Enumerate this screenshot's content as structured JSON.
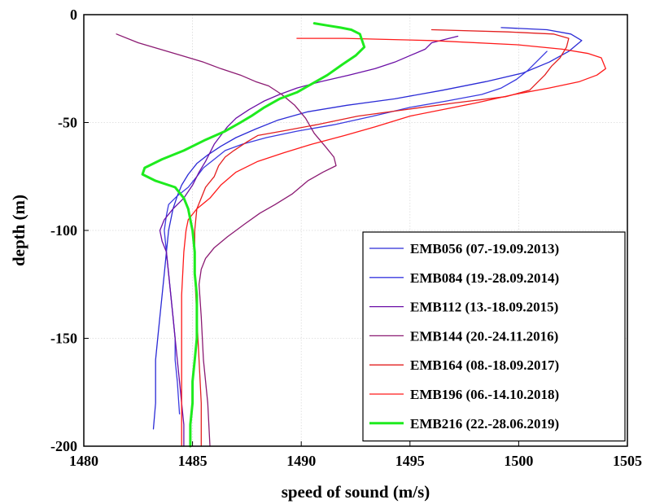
{
  "chart_data": {
    "type": "line",
    "title": "",
    "xlabel": "speed of sound (m/s)",
    "ylabel": "depth (m)",
    "xlim": [
      1480,
      1505
    ],
    "ylim": [
      -200,
      0
    ],
    "xticks": [
      1480,
      1485,
      1490,
      1495,
      1500,
      1505
    ],
    "yticks": [
      0,
      -50,
      -100,
      -150,
      -200
    ],
    "grid": true,
    "legend_position": "lower-right",
    "series": [
      {
        "name": "EMB056 (07.-19.09.2013)",
        "color": "#2b2bd6",
        "width": 1.3,
        "points": [
          [
            1499.2,
            -6
          ],
          [
            1501.3,
            -7
          ],
          [
            1502.4,
            -9
          ],
          [
            1502.9,
            -12
          ],
          [
            1502.3,
            -17
          ],
          [
            1501.4,
            -22
          ],
          [
            1500.2,
            -27
          ],
          [
            1498.5,
            -31
          ],
          [
            1496.5,
            -35
          ],
          [
            1494.3,
            -39
          ],
          [
            1492.1,
            -42
          ],
          [
            1490.3,
            -45
          ],
          [
            1488.9,
            -49
          ],
          [
            1487.9,
            -53
          ],
          [
            1487.0,
            -57
          ],
          [
            1486.3,
            -61
          ],
          [
            1485.7,
            -65
          ],
          [
            1485.2,
            -69
          ],
          [
            1484.8,
            -74
          ],
          [
            1484.5,
            -79
          ],
          [
            1484.3,
            -84
          ],
          [
            1484.1,
            -90
          ],
          [
            1483.9,
            -100
          ],
          [
            1483.8,
            -110
          ],
          [
            1483.7,
            -120
          ],
          [
            1483.6,
            -130
          ],
          [
            1483.5,
            -140
          ],
          [
            1483.4,
            -150
          ],
          [
            1483.3,
            -160
          ],
          [
            1483.3,
            -170
          ],
          [
            1483.3,
            -180
          ],
          [
            1483.2,
            -192
          ]
        ]
      },
      {
        "name": "EMB084 (19.-28.09.2014)",
        "color": "#3a3ae0",
        "width": 1.3,
        "points": [
          [
            1501.3,
            -17
          ],
          [
            1500.8,
            -22
          ],
          [
            1500.4,
            -26
          ],
          [
            1499.9,
            -30
          ],
          [
            1499.2,
            -34
          ],
          [
            1498.3,
            -37
          ],
          [
            1496.7,
            -40
          ],
          [
            1495.0,
            -43
          ],
          [
            1493.3,
            -47
          ],
          [
            1491.5,
            -51
          ],
          [
            1489.8,
            -54
          ],
          [
            1488.4,
            -57
          ],
          [
            1487.3,
            -60
          ],
          [
            1486.5,
            -63
          ],
          [
            1486.0,
            -67
          ],
          [
            1485.5,
            -71
          ],
          [
            1485.2,
            -75
          ],
          [
            1484.8,
            -80
          ],
          [
            1484.3,
            -84
          ],
          [
            1483.9,
            -88
          ],
          [
            1483.8,
            -93
          ],
          [
            1483.7,
            -100
          ],
          [
            1483.8,
            -110
          ],
          [
            1483.9,
            -120
          ],
          [
            1484.0,
            -130
          ],
          [
            1484.1,
            -140
          ],
          [
            1484.2,
            -150
          ],
          [
            1484.2,
            -160
          ],
          [
            1484.3,
            -170
          ],
          [
            1484.4,
            -185
          ]
        ]
      },
      {
        "name": "EMB112 (13.-18.09.2015)",
        "color": "#6b0fa6",
        "width": 1.3,
        "points": [
          [
            1497.2,
            -10
          ],
          [
            1496.8,
            -11
          ],
          [
            1496.0,
            -13
          ],
          [
            1495.7,
            -16
          ],
          [
            1495.0,
            -19
          ],
          [
            1494.3,
            -22
          ],
          [
            1493.4,
            -25
          ],
          [
            1492.2,
            -28
          ],
          [
            1490.9,
            -31
          ],
          [
            1489.8,
            -34
          ],
          [
            1489.0,
            -37
          ],
          [
            1488.3,
            -40
          ],
          [
            1487.6,
            -44
          ],
          [
            1487.0,
            -48
          ],
          [
            1486.6,
            -52
          ],
          [
            1486.3,
            -56
          ],
          [
            1486.0,
            -60
          ],
          [
            1485.8,
            -64
          ],
          [
            1485.6,
            -68
          ],
          [
            1485.3,
            -73
          ],
          [
            1485.0,
            -79
          ],
          [
            1484.6,
            -85
          ],
          [
            1484.1,
            -90
          ],
          [
            1483.7,
            -95
          ],
          [
            1483.5,
            -100
          ],
          [
            1483.6,
            -105
          ],
          [
            1483.8,
            -110
          ],
          [
            1483.9,
            -120
          ],
          [
            1484.0,
            -130
          ],
          [
            1484.1,
            -140
          ],
          [
            1484.2,
            -150
          ],
          [
            1484.3,
            -160
          ],
          [
            1484.4,
            -170
          ],
          [
            1484.5,
            -180
          ],
          [
            1484.6,
            -190
          ],
          [
            1484.6,
            -200
          ]
        ]
      },
      {
        "name": "EMB144 (20.-24.11.2016)",
        "color": "#8b1a72",
        "width": 1.3,
        "points": [
          [
            1481.5,
            -9
          ],
          [
            1482.5,
            -13
          ],
          [
            1483.5,
            -16
          ],
          [
            1484.5,
            -19
          ],
          [
            1485.5,
            -22
          ],
          [
            1486.3,
            -25
          ],
          [
            1487.2,
            -28
          ],
          [
            1487.9,
            -31
          ],
          [
            1488.5,
            -33
          ],
          [
            1489.1,
            -37
          ],
          [
            1489.7,
            -42
          ],
          [
            1490.2,
            -48
          ],
          [
            1490.6,
            -55
          ],
          [
            1491.1,
            -61
          ],
          [
            1491.5,
            -66
          ],
          [
            1491.6,
            -70
          ],
          [
            1491.0,
            -73
          ],
          [
            1490.3,
            -77
          ],
          [
            1489.6,
            -83
          ],
          [
            1488.8,
            -88
          ],
          [
            1488.1,
            -92
          ],
          [
            1487.4,
            -97
          ],
          [
            1486.6,
            -103
          ],
          [
            1486.0,
            -108
          ],
          [
            1485.6,
            -113
          ],
          [
            1485.4,
            -118
          ],
          [
            1485.3,
            -125
          ],
          [
            1485.4,
            -140
          ],
          [
            1485.5,
            -160
          ],
          [
            1485.7,
            -180
          ],
          [
            1485.8,
            -200
          ]
        ]
      },
      {
        "name": "EMB164 (08.-18.09.2017)",
        "color": "#e31f1f",
        "width": 1.3,
        "points": [
          [
            1496.0,
            -7
          ],
          [
            1499.5,
            -8
          ],
          [
            1501.6,
            -9
          ],
          [
            1502.3,
            -11
          ],
          [
            1502.2,
            -15
          ],
          [
            1501.9,
            -20
          ],
          [
            1501.5,
            -24
          ],
          [
            1501.2,
            -28
          ],
          [
            1500.9,
            -31
          ],
          [
            1500.5,
            -35
          ],
          [
            1499.4,
            -38
          ],
          [
            1497.0,
            -41
          ],
          [
            1494.8,
            -44
          ],
          [
            1492.6,
            -47
          ],
          [
            1490.7,
            -51
          ],
          [
            1489.1,
            -54
          ],
          [
            1488.0,
            -56
          ],
          [
            1487.5,
            -59
          ],
          [
            1486.9,
            -63
          ],
          [
            1486.5,
            -66
          ],
          [
            1486.2,
            -70
          ],
          [
            1486.0,
            -75
          ],
          [
            1485.6,
            -80
          ],
          [
            1485.4,
            -85
          ],
          [
            1485.2,
            -90
          ],
          [
            1485.1,
            -100
          ],
          [
            1485.1,
            -120
          ],
          [
            1485.2,
            -140
          ],
          [
            1485.3,
            -160
          ],
          [
            1485.4,
            -180
          ],
          [
            1485.4,
            -200
          ]
        ]
      },
      {
        "name": "EMB196 (06.-14.10.2018)",
        "color": "#ff1a1a",
        "width": 1.3,
        "points": [
          [
            1489.8,
            -11
          ],
          [
            1492.0,
            -11
          ],
          [
            1496.0,
            -12
          ],
          [
            1500.0,
            -14
          ],
          [
            1502.0,
            -16
          ],
          [
            1503.2,
            -18
          ],
          [
            1503.8,
            -20
          ],
          [
            1504.0,
            -25
          ],
          [
            1503.6,
            -28
          ],
          [
            1502.8,
            -31
          ],
          [
            1501.4,
            -34
          ],
          [
            1499.8,
            -37
          ],
          [
            1498.0,
            -41
          ],
          [
            1496.5,
            -44
          ],
          [
            1495.0,
            -47
          ],
          [
            1493.4,
            -52
          ],
          [
            1492.0,
            -56
          ],
          [
            1490.5,
            -60
          ],
          [
            1489.2,
            -64
          ],
          [
            1488.0,
            -68
          ],
          [
            1487.0,
            -73
          ],
          [
            1486.3,
            -79
          ],
          [
            1485.8,
            -85
          ],
          [
            1485.2,
            -90
          ],
          [
            1484.8,
            -95
          ],
          [
            1484.7,
            -100
          ],
          [
            1484.6,
            -110
          ],
          [
            1484.5,
            -130
          ],
          [
            1484.5,
            -150
          ],
          [
            1484.5,
            -170
          ],
          [
            1484.5,
            -200
          ]
        ]
      },
      {
        "name": "EMB216 (22.-28.06.2019)",
        "color": "#1eeb1e",
        "width": 3,
        "points": [
          [
            1490.6,
            -4
          ],
          [
            1491.2,
            -5
          ],
          [
            1491.8,
            -6
          ],
          [
            1492.3,
            -7
          ],
          [
            1492.7,
            -9
          ],
          [
            1492.8,
            -12
          ],
          [
            1492.9,
            -15
          ],
          [
            1492.5,
            -19
          ],
          [
            1491.9,
            -23
          ],
          [
            1491.2,
            -28
          ],
          [
            1490.5,
            -32
          ],
          [
            1489.8,
            -36
          ],
          [
            1489.0,
            -39
          ],
          [
            1488.3,
            -43
          ],
          [
            1487.7,
            -47
          ],
          [
            1487.2,
            -50
          ],
          [
            1486.5,
            -54
          ],
          [
            1485.6,
            -58
          ],
          [
            1484.6,
            -63
          ],
          [
            1483.6,
            -67
          ],
          [
            1482.8,
            -71
          ],
          [
            1482.7,
            -74
          ],
          [
            1483.3,
            -77
          ],
          [
            1484.2,
            -80
          ],
          [
            1484.6,
            -85
          ],
          [
            1484.8,
            -90
          ],
          [
            1484.9,
            -95
          ],
          [
            1485.0,
            -100
          ],
          [
            1485.1,
            -110
          ],
          [
            1485.1,
            -120
          ],
          [
            1485.2,
            -130
          ],
          [
            1485.2,
            -140
          ],
          [
            1485.2,
            -150
          ],
          [
            1485.1,
            -160
          ],
          [
            1485.0,
            -170
          ],
          [
            1485.0,
            -180
          ],
          [
            1484.9,
            -190
          ],
          [
            1484.9,
            -200
          ]
        ]
      }
    ]
  }
}
